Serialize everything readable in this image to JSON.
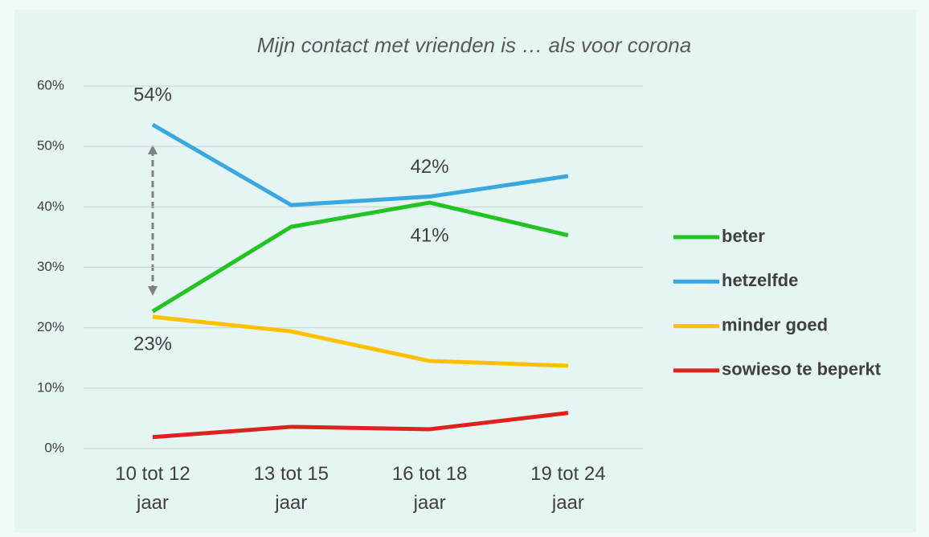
{
  "chart_data": {
    "type": "line",
    "title": "Mijn contact met vrienden is … als voor corona",
    "categories": [
      "10 tot 12 jaar",
      "13 tot 15 jaar",
      "16 tot 18 jaar",
      "19 tot 24 jaar"
    ],
    "series": [
      {
        "name": "beter",
        "color": "#22c422",
        "values": [
          22.7,
          36.7,
          40.7,
          35.3
        ],
        "value_labels": [
          "23%",
          null,
          "41%",
          null
        ]
      },
      {
        "name": "hetzelfde",
        "color": "#3aa8e0",
        "values": [
          53.6,
          40.3,
          41.7,
          45.1
        ],
        "value_labels": [
          "54%",
          null,
          "42%",
          null
        ]
      },
      {
        "name": "minder goed",
        "color": "#ffc000",
        "values": [
          21.8,
          19.4,
          14.5,
          13.7
        ]
      },
      {
        "name": "sowieso te beperkt",
        "color": "#e0201b",
        "values": [
          1.9,
          3.6,
          3.2,
          5.9
        ]
      }
    ],
    "ylim": [
      0,
      60
    ],
    "yticks": [
      {
        "value": 0,
        "label": "0%"
      },
      {
        "value": 10,
        "label": "10%"
      },
      {
        "value": 20,
        "label": "20%"
      },
      {
        "value": 30,
        "label": "30%"
      },
      {
        "value": 40,
        "label": "40%"
      },
      {
        "value": 50,
        "label": "50%"
      },
      {
        "value": 60,
        "label": "60%"
      }
    ],
    "grid": true,
    "legend": "right"
  }
}
